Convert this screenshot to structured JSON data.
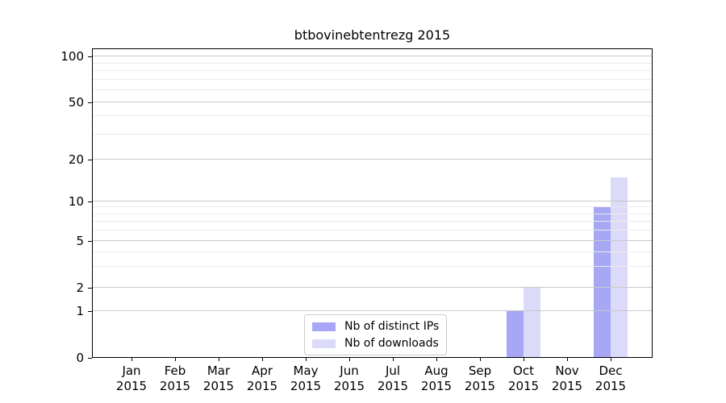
{
  "chart_data": {
    "type": "bar",
    "title": "btbovinebtentrezg 2015",
    "months": [
      "Jan",
      "Feb",
      "Mar",
      "Apr",
      "May",
      "Jun",
      "Jul",
      "Aug",
      "Sep",
      "Oct",
      "Nov",
      "Dec"
    ],
    "year_label": "2015",
    "series": [
      {
        "name": "Nb of distinct IPs",
        "color": "#a7a7f6",
        "values": [
          0,
          0,
          0,
          0,
          0,
          0,
          0,
          0,
          0,
          1,
          0,
          9
        ]
      },
      {
        "name": "Nb of downloads",
        "color": "#dbdbf9",
        "values": [
          0,
          0,
          0,
          0,
          0,
          0,
          0,
          0,
          0,
          2,
          0,
          15
        ]
      }
    ],
    "y_axis": {
      "scale": "symlog",
      "range": [
        0,
        100
      ],
      "ticks": [
        0,
        1,
        2,
        5,
        10,
        20,
        50,
        100
      ],
      "minor_ticks": [
        3,
        4,
        6,
        7,
        8,
        9,
        30,
        40,
        60,
        70,
        80,
        90
      ]
    },
    "legend": {
      "position": "lower center"
    },
    "grid": true
  },
  "style": {
    "background": "#ffffff",
    "spine_color": "#000000",
    "grid_major_color": "#c9c9c9",
    "grid_minor_color": "#ebebeb",
    "text_color": "#000000"
  }
}
